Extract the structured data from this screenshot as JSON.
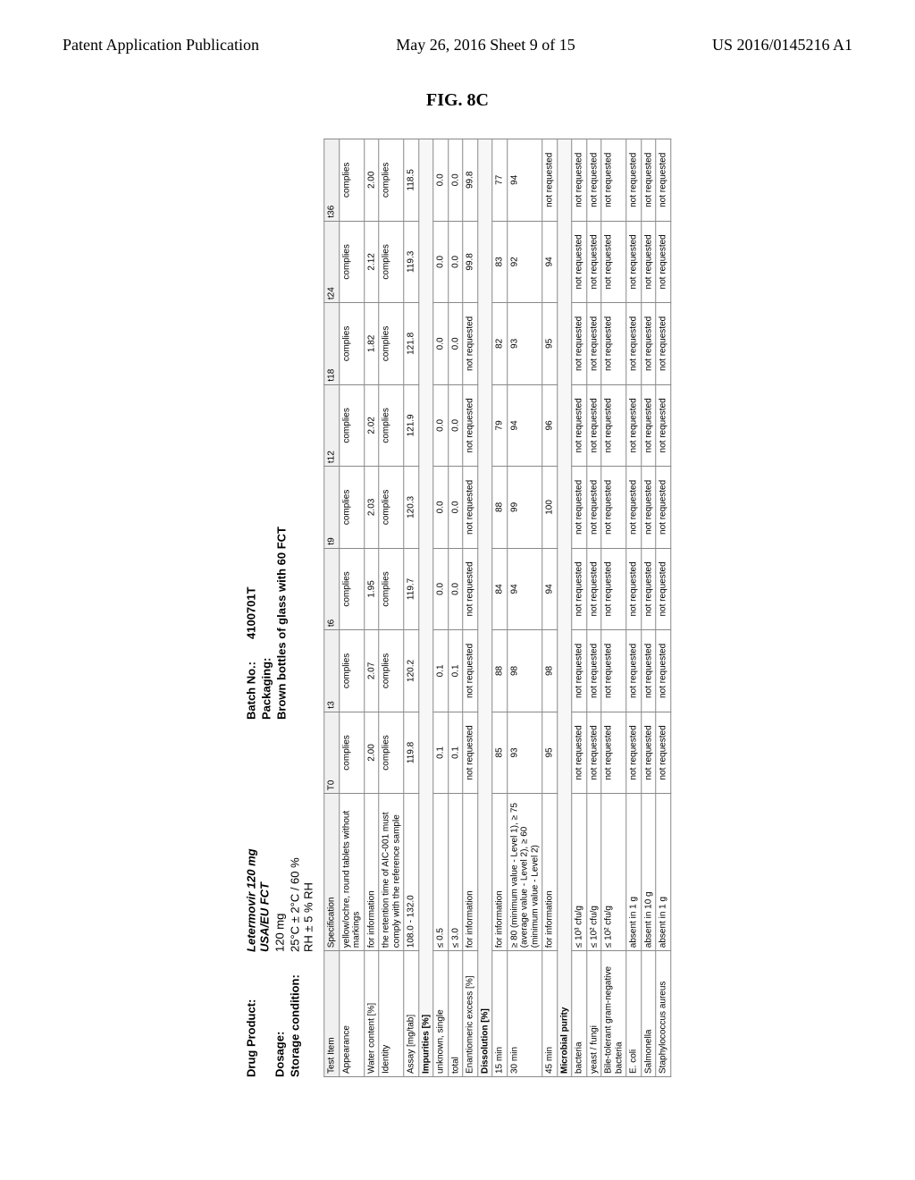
{
  "page_header": {
    "left": "Patent Application Publication",
    "center": "May 26, 2016  Sheet 9 of 15",
    "right": "US 2016/0145216 A1"
  },
  "figure_label": "FIG. 8C",
  "meta": {
    "drug_product_label": "Drug Product:",
    "drug_product_value": "Letermovir   120 mg USA/EU FCT",
    "dosage_label": "Dosage:",
    "dosage_value": "120 mg",
    "storage_label": "Storage condition:",
    "storage_value": "25°C ± 2°C / 60 % RH ± 5 % RH",
    "batch_label": "Batch No.:",
    "batch_value": "4100701T",
    "packaging_label": "Packaging:",
    "packaging_value": "Brown bottles of glass with 60 FCT"
  },
  "timepoints": [
    "T0",
    "t3",
    "t6",
    "t9",
    "t12",
    "t18",
    "t24",
    "t36"
  ],
  "columns": {
    "test_item": "Test Item",
    "specification": "Specification"
  },
  "sections": {
    "impurities": "Impurities [%]",
    "dissolution": "Dissolution [%]",
    "microbial": "Microbial purity"
  },
  "rows": [
    {
      "test": "Appearance",
      "spec": "yellow/ochre, round tablets without markings",
      "vals": [
        "complies",
        "complies",
        "complies",
        "complies",
        "complies",
        "complies",
        "complies",
        "complies"
      ]
    },
    {
      "test": "Water content [%]",
      "spec": "for information",
      "vals": [
        "2.00",
        "2.07",
        "1.95",
        "2.03",
        "2.02",
        "1.82",
        "2.12",
        "2.00"
      ]
    },
    {
      "test": "Identity",
      "spec": "the retention time of AIC-001 must comply with the reference sample",
      "vals": [
        "complies",
        "complies",
        "complies",
        "complies",
        "complies",
        "complies",
        "complies",
        "complies"
      ]
    },
    {
      "test": "Assay [mg/tab]",
      "spec": "108.0 - 132.0",
      "vals": [
        "119.8",
        "120.2",
        "119.7",
        "120.3",
        "121.9",
        "121.8",
        "119.3",
        "118.5"
      ]
    },
    {
      "section": "impurities"
    },
    {
      "test": "unknown, single",
      "spec": "≤ 0.5",
      "vals": [
        "0.1",
        "0.1",
        "0.0",
        "0.0",
        "0.0",
        "0.0",
        "0.0",
        "0.0"
      ]
    },
    {
      "test": "total",
      "spec": "≤ 3.0",
      "vals": [
        "0.1",
        "0.1",
        "0.0",
        "0.0",
        "0.0",
        "0.0",
        "0.0",
        "0.0"
      ]
    },
    {
      "test": "Enantiomeric excess [%]",
      "spec": "for information",
      "vals": [
        "not requested",
        "not requested",
        "not requested",
        "not requested",
        "not requested",
        "not requested",
        "99.8",
        "99.8"
      ]
    },
    {
      "section": "dissolution"
    },
    {
      "test": "15 min",
      "spec": "for information",
      "vals": [
        "85",
        "88",
        "84",
        "88",
        "79",
        "82",
        "83",
        "77"
      ]
    },
    {
      "test": "30 min",
      "spec": "≥ 80 (minimum value - Level 1), ≥ 75 (average value - Level 2), ≥ 60 (minimum value - Level 2)",
      "vals": [
        "93",
        "98",
        "94",
        "99",
        "94",
        "93",
        "92",
        "94"
      ]
    },
    {
      "test": "45 min",
      "spec": "for information",
      "vals": [
        "95",
        "98",
        "94",
        "100",
        "96",
        "95",
        "94",
        "not requested"
      ]
    },
    {
      "section": "microbial"
    },
    {
      "test": "bacteria",
      "spec": "≤ 10³ cfu/g",
      "vals": [
        "not requested",
        "not requested",
        "not requested",
        "not requested",
        "not requested",
        "not requested",
        "not requested",
        "not requested"
      ]
    },
    {
      "test": "yeast / fungi",
      "spec": "≤ 10² cfu/g",
      "vals": [
        "not requested",
        "not requested",
        "not requested",
        "not requested",
        "not requested",
        "not requested",
        "not requested",
        "not requested"
      ]
    },
    {
      "test": "Bile-tolerant gram-negative bacteria",
      "spec": "≤ 10² cfu/g",
      "vals": [
        "not requested",
        "not requested",
        "not requested",
        "not requested",
        "not requested",
        "not requested",
        "not requested",
        "not requested"
      ]
    },
    {
      "test": "E. coli",
      "spec": "absent in 1 g",
      "vals": [
        "not requested",
        "not requested",
        "not requested",
        "not requested",
        "not requested",
        "not requested",
        "not requested",
        "not requested"
      ]
    },
    {
      "test": "Salmonella",
      "spec": "absent in 10 g",
      "vals": [
        "not requested",
        "not requested",
        "not requested",
        "not requested",
        "not requested",
        "not requested",
        "not requested",
        "not requested"
      ]
    },
    {
      "test": "Staphylococcus aureus",
      "spec": "absent in 1 g",
      "vals": [
        "not requested",
        "not requested",
        "not requested",
        "not requested",
        "not requested",
        "not requested",
        "not requested",
        "not requested"
      ]
    }
  ]
}
